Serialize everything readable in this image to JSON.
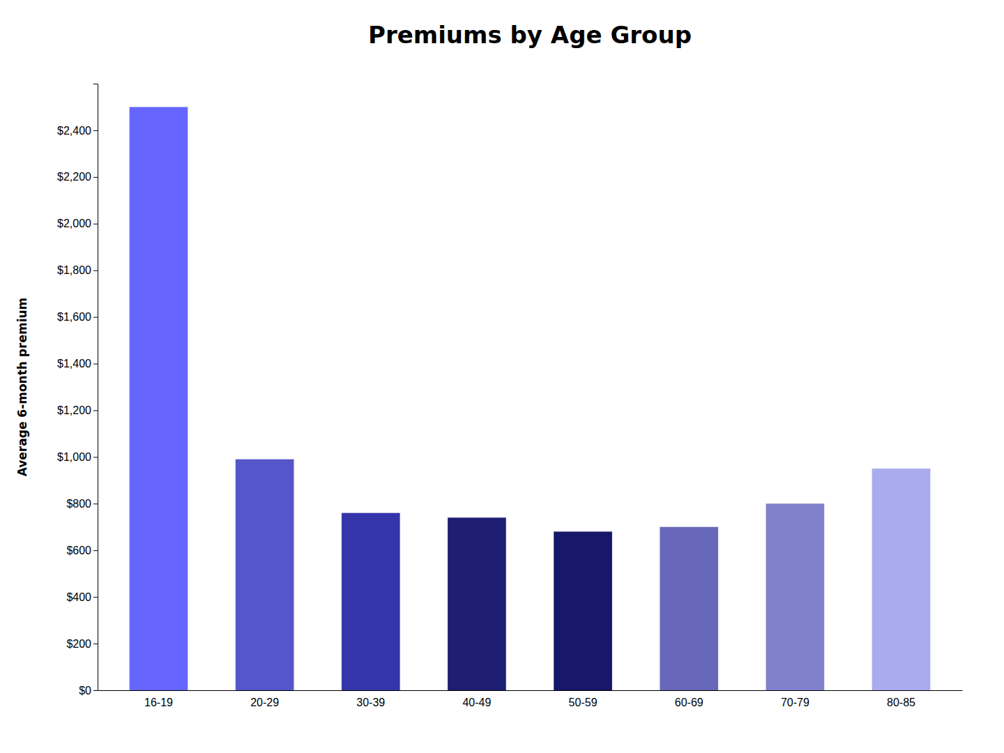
{
  "chart_data": {
    "type": "bar",
    "title": "Premiums by Age Group",
    "ylabel": "Average 6-month premium",
    "categories": [
      "16-19",
      "20-29",
      "30-39",
      "40-49",
      "50-59",
      "60-69",
      "70-79",
      "80-85"
    ],
    "values": [
      2500,
      990,
      760,
      740,
      680,
      700,
      800,
      950
    ],
    "colors": [
      "#6666ff",
      "#5555cc",
      "#3535aa",
      "#1e1e72",
      "#181868",
      "#6868bb",
      "#8080cc",
      "#aaaaee"
    ],
    "ylim": [
      0,
      2600
    ],
    "yticks": [
      {
        "value": 0,
        "label": "$0"
      },
      {
        "value": 200,
        "label": "$200"
      },
      {
        "value": 400,
        "label": "$400"
      },
      {
        "value": 600,
        "label": "$600"
      },
      {
        "value": 800,
        "label": "$800"
      },
      {
        "value": 1000,
        "label": "$1,000"
      },
      {
        "value": 1200,
        "label": "$1,200"
      },
      {
        "value": 1400,
        "label": "$1,400"
      },
      {
        "value": 1600,
        "label": "$1,600"
      },
      {
        "value": 1800,
        "label": "$1,800"
      },
      {
        "value": 2000,
        "label": "$2,000"
      },
      {
        "value": 2200,
        "label": "$2,200"
      },
      {
        "value": 2400,
        "label": "$2,400"
      }
    ],
    "grid": false
  }
}
